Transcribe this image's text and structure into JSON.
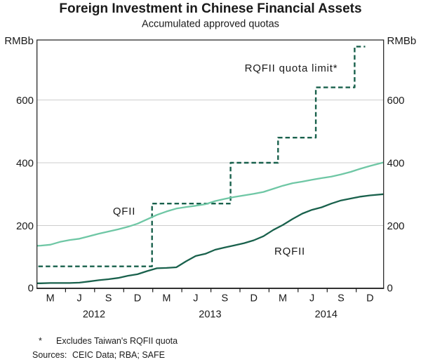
{
  "chart_data": {
    "type": "line",
    "title": "Foreign Investment in Chinese Financial Assets",
    "subtitle": "Accumulated approved quotas",
    "unit_left": "RMBb",
    "unit_right": "RMBb",
    "y_axis": {
      "tick_values": [
        600,
        400,
        200,
        0
      ],
      "ticks_left": [
        "600",
        "400",
        "200",
        "0"
      ],
      "ticks_right": [
        "600",
        "400",
        "200",
        "0"
      ],
      "visible_range": [
        0,
        790
      ],
      "grid": "on"
    },
    "x_axis": {
      "start": "Jan 2012",
      "end": "Dec 2014",
      "frequency": "monthly",
      "month_tick_labels": [
        "M",
        "J",
        "S",
        "D",
        "M",
        "J",
        "S",
        "D",
        "M",
        "J",
        "S",
        "D"
      ],
      "year_labels": [
        "2012",
        "2013",
        "2014"
      ]
    },
    "series": [
      {
        "key": "qfii",
        "label": "QFII",
        "color": "#6fc7a5",
        "line_style": "solid",
        "monthly_values": [
          135,
          136,
          139,
          148,
          154,
          158,
          166,
          174,
          181,
          188,
          196,
          206,
          220,
          234,
          245,
          254,
          259,
          263,
          268,
          278,
          285,
          291,
          296,
          301,
          307,
          317,
          327,
          335,
          340,
          346,
          351,
          356,
          363,
          371,
          381,
          390,
          401
        ]
      },
      {
        "key": "rqfii",
        "label": "RQFII",
        "color": "#19614c",
        "line_style": "solid",
        "monthly_values": [
          16,
          16,
          17,
          17,
          17,
          18,
          22,
          26,
          29,
          33,
          40,
          45,
          55,
          64,
          65,
          67,
          86,
          103,
          110,
          123,
          130,
          137,
          144,
          153,
          166,
          186,
          202,
          221,
          238,
          250,
          258,
          270,
          280,
          286,
          292,
          296,
          300
        ]
      },
      {
        "key": "quota-limit",
        "label": "RQFII quota limit*",
        "color": "#19614c",
        "line_style": "dashed",
        "steps": [
          {
            "month_index": 0,
            "date": "Jan 2012",
            "value": 70
          },
          {
            "month_index": 12.5,
            "date": "Feb 2013",
            "value": 270
          },
          {
            "month_index": 20.6,
            "date": "Oct 2013",
            "value": 400
          },
          {
            "month_index": 25.5,
            "date": "Mar 2014",
            "value": 480
          },
          {
            "month_index": 29.4,
            "date": "Jul 2014",
            "value": 640
          },
          {
            "month_index": 33.4,
            "date": "Nov 2014",
            "value": 770
          }
        ],
        "end_month_index": 34.5
      }
    ]
  },
  "footnotes": {
    "marker": "*",
    "asterisk_note": "Excludes Taiwan's RQFII quota",
    "sources_label": "Sources:",
    "sources": "CEIC Data; RBA; SAFE"
  }
}
